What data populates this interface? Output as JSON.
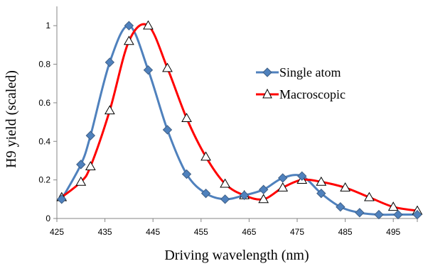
{
  "chart_data": {
    "type": "line",
    "title": "",
    "xlabel": "Driving wavelength (nm)",
    "ylabel": "H9 yield (scaled)",
    "xlim": [
      425,
      500
    ],
    "ylim": [
      0,
      1.1
    ],
    "xticks": [
      425,
      435,
      445,
      455,
      465,
      475,
      485,
      495
    ],
    "yticks": [
      0,
      0.2,
      0.4,
      0.6,
      0.8,
      1
    ],
    "ytick_labels": [
      "0",
      "0.2",
      "0.4",
      "0.6",
      "0.8",
      "1"
    ],
    "grid": false,
    "legend_position": "center-right",
    "series": [
      {
        "name": "Single atom",
        "color": "#4F81BD",
        "marker": "diamond",
        "marker_fill": "#4F81BD",
        "x": [
          426,
          430,
          432,
          436,
          440,
          444,
          448,
          452,
          456,
          460,
          464,
          468,
          472,
          476,
          480,
          484,
          488,
          492,
          496,
          500
        ],
        "y": [
          0.1,
          0.28,
          0.43,
          0.81,
          1.0,
          0.77,
          0.46,
          0.23,
          0.13,
          0.1,
          0.12,
          0.15,
          0.21,
          0.22,
          0.13,
          0.06,
          0.03,
          0.02,
          0.02,
          0.02
        ]
      },
      {
        "name": "Macroscopic",
        "color": "#FF0000",
        "marker": "triangle",
        "marker_fill": "#ffffff",
        "x": [
          426,
          430,
          432,
          436,
          440,
          444,
          448,
          452,
          456,
          460,
          464,
          468,
          472,
          476,
          480,
          485,
          490,
          495,
          500
        ],
        "y": [
          0.11,
          0.19,
          0.27,
          0.56,
          0.92,
          1.0,
          0.78,
          0.52,
          0.32,
          0.18,
          0.12,
          0.1,
          0.16,
          0.2,
          0.19,
          0.16,
          0.11,
          0.06,
          0.04
        ]
      }
    ]
  }
}
